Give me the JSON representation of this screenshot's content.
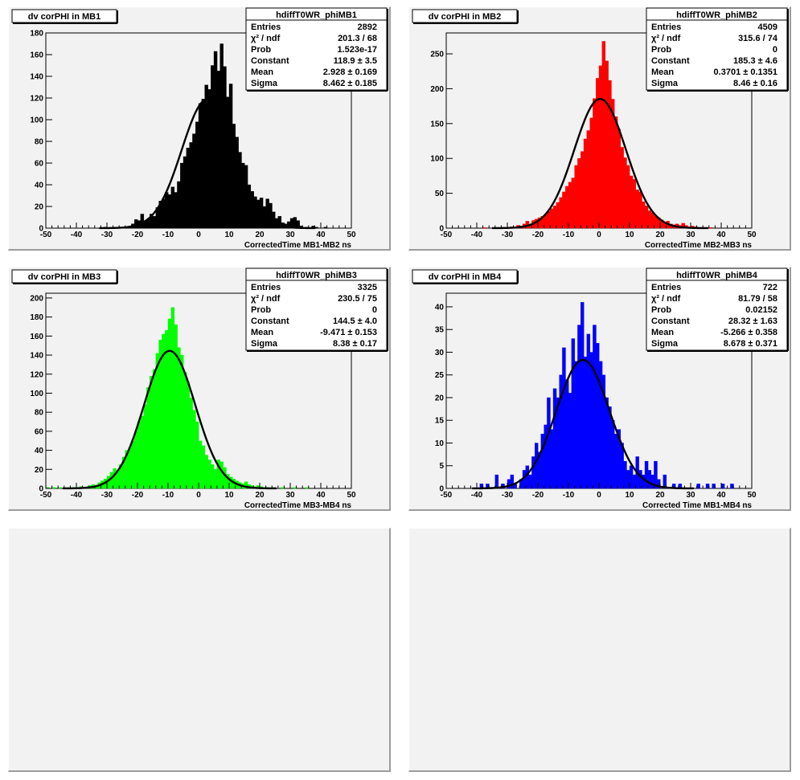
{
  "chart_data": [
    {
      "type": "bar",
      "pad_title": "dv corPHI in MB1",
      "hist_name": "hdiffT0WR_phiMB1",
      "xlabel": "CorrectedTime MB1-MB2   ns",
      "xlim": [
        -50,
        50
      ],
      "ylim": [
        0,
        180
      ],
      "xticks": [
        -50,
        -40,
        -30,
        -20,
        -10,
        0,
        10,
        20,
        30,
        40,
        50
      ],
      "yticks": [
        0,
        20,
        40,
        60,
        80,
        100,
        120,
        140,
        160,
        180
      ],
      "color": "#000000",
      "stats": [
        {
          "label": "Entries",
          "value": "2892"
        },
        {
          "label": "χ² / ndf",
          "value": "201.3 / 68"
        },
        {
          "label": "Prob",
          "value": "1.523e-17"
        },
        {
          "label": "Constant",
          "value": "118.9 ± 3.5"
        },
        {
          "label": "Mean",
          "value": "2.928 ± 0.169"
        },
        {
          "label": "Sigma",
          "value": "8.462 ± 0.185"
        }
      ],
      "fit": {
        "constant": 118.9,
        "mean": 2.928,
        "sigma": 8.462
      },
      "bin_width": 1,
      "bins": [
        {
          "x": -31,
          "y": 1
        },
        {
          "x": -27,
          "y": 1
        },
        {
          "x": -25,
          "y": 1
        },
        {
          "x": -23,
          "y": 2
        },
        {
          "x": -22,
          "y": 4
        },
        {
          "x": -21,
          "y": 8
        },
        {
          "x": -20,
          "y": 7
        },
        {
          "x": -19,
          "y": 13
        },
        {
          "x": -18,
          "y": 7
        },
        {
          "x": -17,
          "y": 8
        },
        {
          "x": -16,
          "y": 13
        },
        {
          "x": -15,
          "y": 11
        },
        {
          "x": -14,
          "y": 19
        },
        {
          "x": -13,
          "y": 25
        },
        {
          "x": -12,
          "y": 27
        },
        {
          "x": -11,
          "y": 33
        },
        {
          "x": -10,
          "y": 31
        },
        {
          "x": -9,
          "y": 38
        },
        {
          "x": -8,
          "y": 33
        },
        {
          "x": -7,
          "y": 43
        },
        {
          "x": -6,
          "y": 60
        },
        {
          "x": -5,
          "y": 66
        },
        {
          "x": -4,
          "y": 74
        },
        {
          "x": -3,
          "y": 79
        },
        {
          "x": -2,
          "y": 87
        },
        {
          "x": -1,
          "y": 98
        },
        {
          "x": 0,
          "y": 115
        },
        {
          "x": 1,
          "y": 119
        },
        {
          "x": 2,
          "y": 132
        },
        {
          "x": 3,
          "y": 128
        },
        {
          "x": 4,
          "y": 150
        },
        {
          "x": 5,
          "y": 163
        },
        {
          "x": 6,
          "y": 145
        },
        {
          "x": 7,
          "y": 170
        },
        {
          "x": 8,
          "y": 149
        },
        {
          "x": 9,
          "y": 121
        },
        {
          "x": 10,
          "y": 133
        },
        {
          "x": 11,
          "y": 96
        },
        {
          "x": 12,
          "y": 84
        },
        {
          "x": 13,
          "y": 70
        },
        {
          "x": 14,
          "y": 60
        },
        {
          "x": 15,
          "y": 58
        },
        {
          "x": 16,
          "y": 40
        },
        {
          "x": 17,
          "y": 34
        },
        {
          "x": 18,
          "y": 29
        },
        {
          "x": 19,
          "y": 26
        },
        {
          "x": 20,
          "y": 28
        },
        {
          "x": 21,
          "y": 20
        },
        {
          "x": 22,
          "y": 27
        },
        {
          "x": 23,
          "y": 23
        },
        {
          "x": 24,
          "y": 15
        },
        {
          "x": 25,
          "y": 9
        },
        {
          "x": 26,
          "y": 11
        },
        {
          "x": 27,
          "y": 5
        },
        {
          "x": 28,
          "y": 4
        },
        {
          "x": 29,
          "y": 6
        },
        {
          "x": 30,
          "y": 9
        },
        {
          "x": 31,
          "y": 10
        },
        {
          "x": 32,
          "y": 7
        },
        {
          "x": 33,
          "y": 2
        },
        {
          "x": 35,
          "y": 1
        },
        {
          "x": 37,
          "y": 2
        },
        {
          "x": 38,
          "y": 1
        },
        {
          "x": 41,
          "y": 1
        }
      ]
    },
    {
      "type": "bar",
      "pad_title": "dv corPHI in MB2",
      "hist_name": "hdiffT0WR_phiMB2",
      "xlabel": "CorrectedTime MB2-MB3   ns",
      "xlim": [
        -50,
        50
      ],
      "ylim": [
        0,
        280
      ],
      "xticks": [
        -50,
        -40,
        -30,
        -20,
        -10,
        0,
        10,
        20,
        30,
        40,
        50
      ],
      "yticks": [
        0,
        50,
        100,
        150,
        200,
        250
      ],
      "color": "#ff0000",
      "stats": [
        {
          "label": "Entries",
          "value": "4509"
        },
        {
          "label": "χ² / ndf",
          "value": "315.6 / 74"
        },
        {
          "label": "Prob",
          "value": "0"
        },
        {
          "label": "Constant",
          "value": "185.3 ± 4.6"
        },
        {
          "label": "Mean",
          "value": "0.3701 ± 0.1351"
        },
        {
          "label": "Sigma",
          "value": "8.46 ± 0.16"
        }
      ],
      "fit": {
        "constant": 185.3,
        "mean": 0.3701,
        "sigma": 8.46
      },
      "bin_width": 1,
      "bins": [
        {
          "x": -38,
          "y": 1
        },
        {
          "x": -33,
          "y": 1
        },
        {
          "x": -29,
          "y": 2
        },
        {
          "x": -27,
          "y": 4
        },
        {
          "x": -26,
          "y": 3
        },
        {
          "x": -25,
          "y": 6
        },
        {
          "x": -24,
          "y": 10
        },
        {
          "x": -23,
          "y": 6
        },
        {
          "x": -22,
          "y": 11
        },
        {
          "x": -21,
          "y": 13
        },
        {
          "x": -20,
          "y": 15
        },
        {
          "x": -19,
          "y": 17
        },
        {
          "x": -18,
          "y": 20
        },
        {
          "x": -17,
          "y": 24
        },
        {
          "x": -16,
          "y": 28
        },
        {
          "x": -15,
          "y": 32
        },
        {
          "x": -14,
          "y": 37
        },
        {
          "x": -13,
          "y": 44
        },
        {
          "x": -12,
          "y": 52
        },
        {
          "x": -11,
          "y": 60
        },
        {
          "x": -10,
          "y": 66
        },
        {
          "x": -9,
          "y": 72
        },
        {
          "x": -8,
          "y": 90
        },
        {
          "x": -7,
          "y": 100
        },
        {
          "x": -6,
          "y": 110
        },
        {
          "x": -5,
          "y": 128
        },
        {
          "x": -4,
          "y": 140
        },
        {
          "x": -3,
          "y": 158
        },
        {
          "x": -2,
          "y": 186
        },
        {
          "x": -1,
          "y": 215
        },
        {
          "x": 0,
          "y": 233
        },
        {
          "x": 1,
          "y": 268
        },
        {
          "x": 2,
          "y": 240
        },
        {
          "x": 3,
          "y": 212
        },
        {
          "x": 4,
          "y": 185
        },
        {
          "x": 5,
          "y": 160
        },
        {
          "x": 6,
          "y": 142
        },
        {
          "x": 7,
          "y": 116
        },
        {
          "x": 8,
          "y": 101
        },
        {
          "x": 9,
          "y": 90
        },
        {
          "x": 10,
          "y": 75
        },
        {
          "x": 11,
          "y": 70
        },
        {
          "x": 12,
          "y": 55
        },
        {
          "x": 13,
          "y": 52
        },
        {
          "x": 14,
          "y": 38
        },
        {
          "x": 15,
          "y": 32
        },
        {
          "x": 16,
          "y": 25
        },
        {
          "x": 17,
          "y": 22
        },
        {
          "x": 18,
          "y": 17
        },
        {
          "x": 19,
          "y": 15
        },
        {
          "x": 20,
          "y": 12
        },
        {
          "x": 21,
          "y": 9
        },
        {
          "x": 22,
          "y": 10
        },
        {
          "x": 23,
          "y": 6
        },
        {
          "x": 24,
          "y": 5
        },
        {
          "x": 25,
          "y": 6
        },
        {
          "x": 26,
          "y": 4
        },
        {
          "x": 27,
          "y": 7
        },
        {
          "x": 28,
          "y": 4
        },
        {
          "x": 29,
          "y": 2
        },
        {
          "x": 30,
          "y": 3
        },
        {
          "x": 31,
          "y": 2
        },
        {
          "x": 33,
          "y": 1
        },
        {
          "x": 36,
          "y": 1
        }
      ]
    },
    {
      "type": "bar",
      "pad_title": "dv corPHI in MB3",
      "hist_name": "hdiffT0WR_phiMB3",
      "xlabel": "CorrectedTime MB3-MB4   ns",
      "xlim": [
        -50,
        50
      ],
      "ylim": [
        0,
        205
      ],
      "xticks": [
        -50,
        -40,
        -30,
        -20,
        -10,
        0,
        10,
        20,
        30,
        40,
        50
      ],
      "yticks": [
        0,
        20,
        40,
        60,
        80,
        100,
        120,
        140,
        160,
        180,
        200
      ],
      "color": "#00ff00",
      "stats": [
        {
          "label": "Entries",
          "value": "3325"
        },
        {
          "label": "χ² / ndf",
          "value": "230.5 / 75"
        },
        {
          "label": "Prob",
          "value": "0"
        },
        {
          "label": "Constant",
          "value": "144.5 ± 4.0"
        },
        {
          "label": "Mean",
          "value": "-9.471 ± 0.153"
        },
        {
          "label": "Sigma",
          "value": "8.38 ± 0.17"
        }
      ],
      "fit": {
        "constant": 144.5,
        "mean": -9.471,
        "sigma": 8.38
      },
      "bin_width": 1,
      "bins": [
        {
          "x": -50,
          "y": 1
        },
        {
          "x": -48,
          "y": 1
        },
        {
          "x": -46,
          "y": 1
        },
        {
          "x": -43,
          "y": 1
        },
        {
          "x": -41,
          "y": 1
        },
        {
          "x": -39,
          "y": 2
        },
        {
          "x": -37,
          "y": 2
        },
        {
          "x": -36,
          "y": 3
        },
        {
          "x": -35,
          "y": 4
        },
        {
          "x": -34,
          "y": 3
        },
        {
          "x": -33,
          "y": 6
        },
        {
          "x": -32,
          "y": 8
        },
        {
          "x": -31,
          "y": 10
        },
        {
          "x": -30,
          "y": 13
        },
        {
          "x": -29,
          "y": 17
        },
        {
          "x": -28,
          "y": 21
        },
        {
          "x": -27,
          "y": 19
        },
        {
          "x": -26,
          "y": 25
        },
        {
          "x": -25,
          "y": 33
        },
        {
          "x": -24,
          "y": 40
        },
        {
          "x": -23,
          "y": 43
        },
        {
          "x": -22,
          "y": 50
        },
        {
          "x": -21,
          "y": 60
        },
        {
          "x": -20,
          "y": 70
        },
        {
          "x": -19,
          "y": 76
        },
        {
          "x": -18,
          "y": 88
        },
        {
          "x": -17,
          "y": 106
        },
        {
          "x": -16,
          "y": 118
        },
        {
          "x": -15,
          "y": 125
        },
        {
          "x": -14,
          "y": 142
        },
        {
          "x": -13,
          "y": 156
        },
        {
          "x": -12,
          "y": 162
        },
        {
          "x": -11,
          "y": 166
        },
        {
          "x": -10,
          "y": 178
        },
        {
          "x": -9,
          "y": 190
        },
        {
          "x": -8,
          "y": 172
        },
        {
          "x": -7,
          "y": 148
        },
        {
          "x": -6,
          "y": 140
        },
        {
          "x": -5,
          "y": 122
        },
        {
          "x": -4,
          "y": 112
        },
        {
          "x": -3,
          "y": 95
        },
        {
          "x": -2,
          "y": 82
        },
        {
          "x": -1,
          "y": 70
        },
        {
          "x": 0,
          "y": 50
        },
        {
          "x": 1,
          "y": 45
        },
        {
          "x": 2,
          "y": 35
        },
        {
          "x": 3,
          "y": 30
        },
        {
          "x": 4,
          "y": 25
        },
        {
          "x": 5,
          "y": 20
        },
        {
          "x": 6,
          "y": 30
        },
        {
          "x": 7,
          "y": 28
        },
        {
          "x": 8,
          "y": 22
        },
        {
          "x": 9,
          "y": 15
        },
        {
          "x": 10,
          "y": 12
        },
        {
          "x": 11,
          "y": 10
        },
        {
          "x": 12,
          "y": 8
        },
        {
          "x": 13,
          "y": 6
        },
        {
          "x": 14,
          "y": 5
        },
        {
          "x": 15,
          "y": 7
        },
        {
          "x": 16,
          "y": 4
        },
        {
          "x": 17,
          "y": 3
        },
        {
          "x": 18,
          "y": 2
        },
        {
          "x": 19,
          "y": 3
        },
        {
          "x": 20,
          "y": 2
        },
        {
          "x": 22,
          "y": 1
        },
        {
          "x": 24,
          "y": 1
        },
        {
          "x": 27,
          "y": 1
        },
        {
          "x": 31,
          "y": 1
        },
        {
          "x": 35,
          "y": 1
        }
      ]
    },
    {
      "type": "bar",
      "pad_title": "dv corPHI in MB4",
      "hist_name": "hdiffT0WR_phiMB4",
      "xlabel": "Corrected Time MB1-MB4   ns",
      "xlim": [
        -50,
        50
      ],
      "ylim": [
        0,
        43
      ],
      "xticks": [
        -50,
        -40,
        -30,
        -20,
        -10,
        0,
        10,
        20,
        30,
        40,
        50
      ],
      "yticks": [
        0,
        5,
        10,
        15,
        20,
        25,
        30,
        35,
        40
      ],
      "color": "#0000ff",
      "stats": [
        {
          "label": "Entries",
          "value": "722"
        },
        {
          "label": "χ² / ndf",
          "value": "81.79 / 58"
        },
        {
          "label": "Prob",
          "value": "0.02152"
        },
        {
          "label": "Constant",
          "value": "28.32 ± 1.63"
        },
        {
          "label": "Mean",
          "value": "-5.266 ± 0.358"
        },
        {
          "label": "Sigma",
          "value": "8.678 ± 0.371"
        }
      ],
      "fit": {
        "constant": 28.32,
        "mean": -5.266,
        "sigma": 8.678
      },
      "bin_width": 1,
      "bins": [
        {
          "x": -39,
          "y": 1
        },
        {
          "x": -37,
          "y": 1
        },
        {
          "x": -34,
          "y": 3
        },
        {
          "x": -32,
          "y": 1
        },
        {
          "x": -30,
          "y": 2
        },
        {
          "x": -29,
          "y": 3
        },
        {
          "x": -28,
          "y": 1
        },
        {
          "x": -26,
          "y": 2
        },
        {
          "x": -25,
          "y": 4
        },
        {
          "x": -24,
          "y": 5
        },
        {
          "x": -23,
          "y": 3
        },
        {
          "x": -22,
          "y": 7
        },
        {
          "x": -21,
          "y": 10
        },
        {
          "x": -20,
          "y": 8
        },
        {
          "x": -19,
          "y": 12
        },
        {
          "x": -18,
          "y": 14
        },
        {
          "x": -17,
          "y": 20
        },
        {
          "x": -16,
          "y": 13
        },
        {
          "x": -15,
          "y": 22
        },
        {
          "x": -14,
          "y": 20
        },
        {
          "x": -13,
          "y": 25
        },
        {
          "x": -12,
          "y": 31
        },
        {
          "x": -11,
          "y": 24
        },
        {
          "x": -10,
          "y": 21
        },
        {
          "x": -9,
          "y": 33
        },
        {
          "x": -8,
          "y": 28
        },
        {
          "x": -7,
          "y": 36
        },
        {
          "x": -6,
          "y": 41
        },
        {
          "x": -5,
          "y": 29
        },
        {
          "x": -4,
          "y": 34
        },
        {
          "x": -3,
          "y": 30
        },
        {
          "x": -2,
          "y": 36
        },
        {
          "x": -1,
          "y": 32
        },
        {
          "x": 0,
          "y": 28
        },
        {
          "x": 1,
          "y": 25
        },
        {
          "x": 2,
          "y": 20
        },
        {
          "x": 3,
          "y": 18
        },
        {
          "x": 4,
          "y": 15
        },
        {
          "x": 5,
          "y": 12
        },
        {
          "x": 6,
          "y": 13
        },
        {
          "x": 7,
          "y": 10
        },
        {
          "x": 8,
          "y": 6
        },
        {
          "x": 9,
          "y": 4
        },
        {
          "x": 10,
          "y": 5
        },
        {
          "x": 11,
          "y": 3
        },
        {
          "x": 12,
          "y": 7
        },
        {
          "x": 13,
          "y": 4
        },
        {
          "x": 14,
          "y": 3
        },
        {
          "x": 15,
          "y": 6
        },
        {
          "x": 16,
          "y": 4
        },
        {
          "x": 17,
          "y": 3
        },
        {
          "x": 18,
          "y": 6
        },
        {
          "x": 19,
          "y": 2
        },
        {
          "x": 21,
          "y": 3
        },
        {
          "x": 24,
          "y": 1
        },
        {
          "x": 26,
          "y": 1
        },
        {
          "x": 32,
          "y": 1
        },
        {
          "x": 35,
          "y": 1
        },
        {
          "x": 37,
          "y": 1
        },
        {
          "x": 40,
          "y": 1
        },
        {
          "x": 43,
          "y": 1
        }
      ]
    }
  ]
}
